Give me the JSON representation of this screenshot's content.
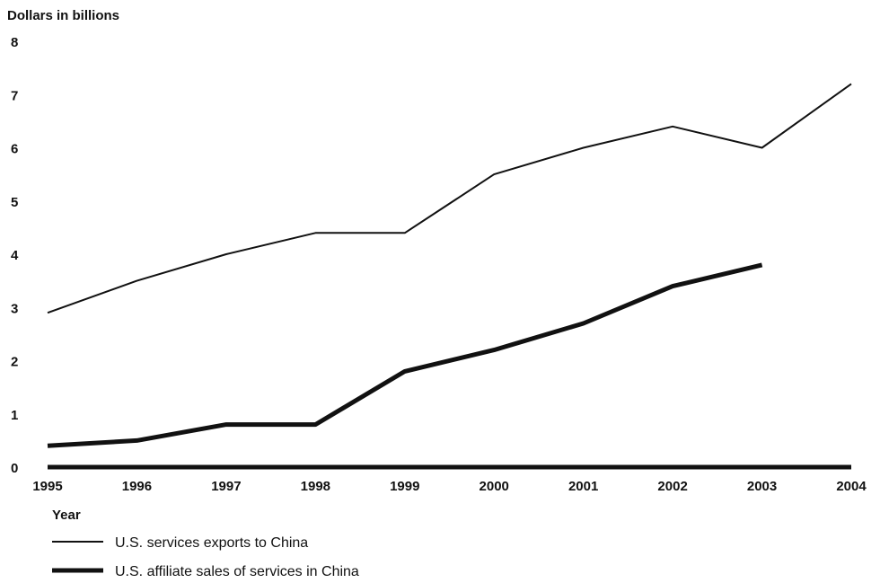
{
  "chart_data": {
    "type": "line",
    "ylabel": "Dollars in billions",
    "xlabel": "Year",
    "x": [
      "1995",
      "1996",
      "1997",
      "1998",
      "1999",
      "2000",
      "2001",
      "2002",
      "2003",
      "2004"
    ],
    "ylim": [
      0,
      8
    ],
    "yticks": [
      "0",
      "1",
      "2",
      "3",
      "4",
      "5",
      "6",
      "7",
      "8"
    ],
    "grid": false,
    "legend_position": "bottom-left",
    "series": [
      {
        "name": "U.S. services exports to China",
        "values": [
          2.9,
          3.5,
          4.0,
          4.4,
          4.4,
          5.5,
          6.0,
          6.4,
          6.0,
          7.2
        ],
        "style": "thin",
        "color": "#111111"
      },
      {
        "name": "U.S. affiliate sales of services in China",
        "values": [
          0.4,
          0.5,
          0.8,
          0.8,
          1.8,
          2.2,
          2.7,
          3.4,
          3.8,
          null
        ],
        "style": "thick",
        "color": "#111111"
      }
    ]
  }
}
